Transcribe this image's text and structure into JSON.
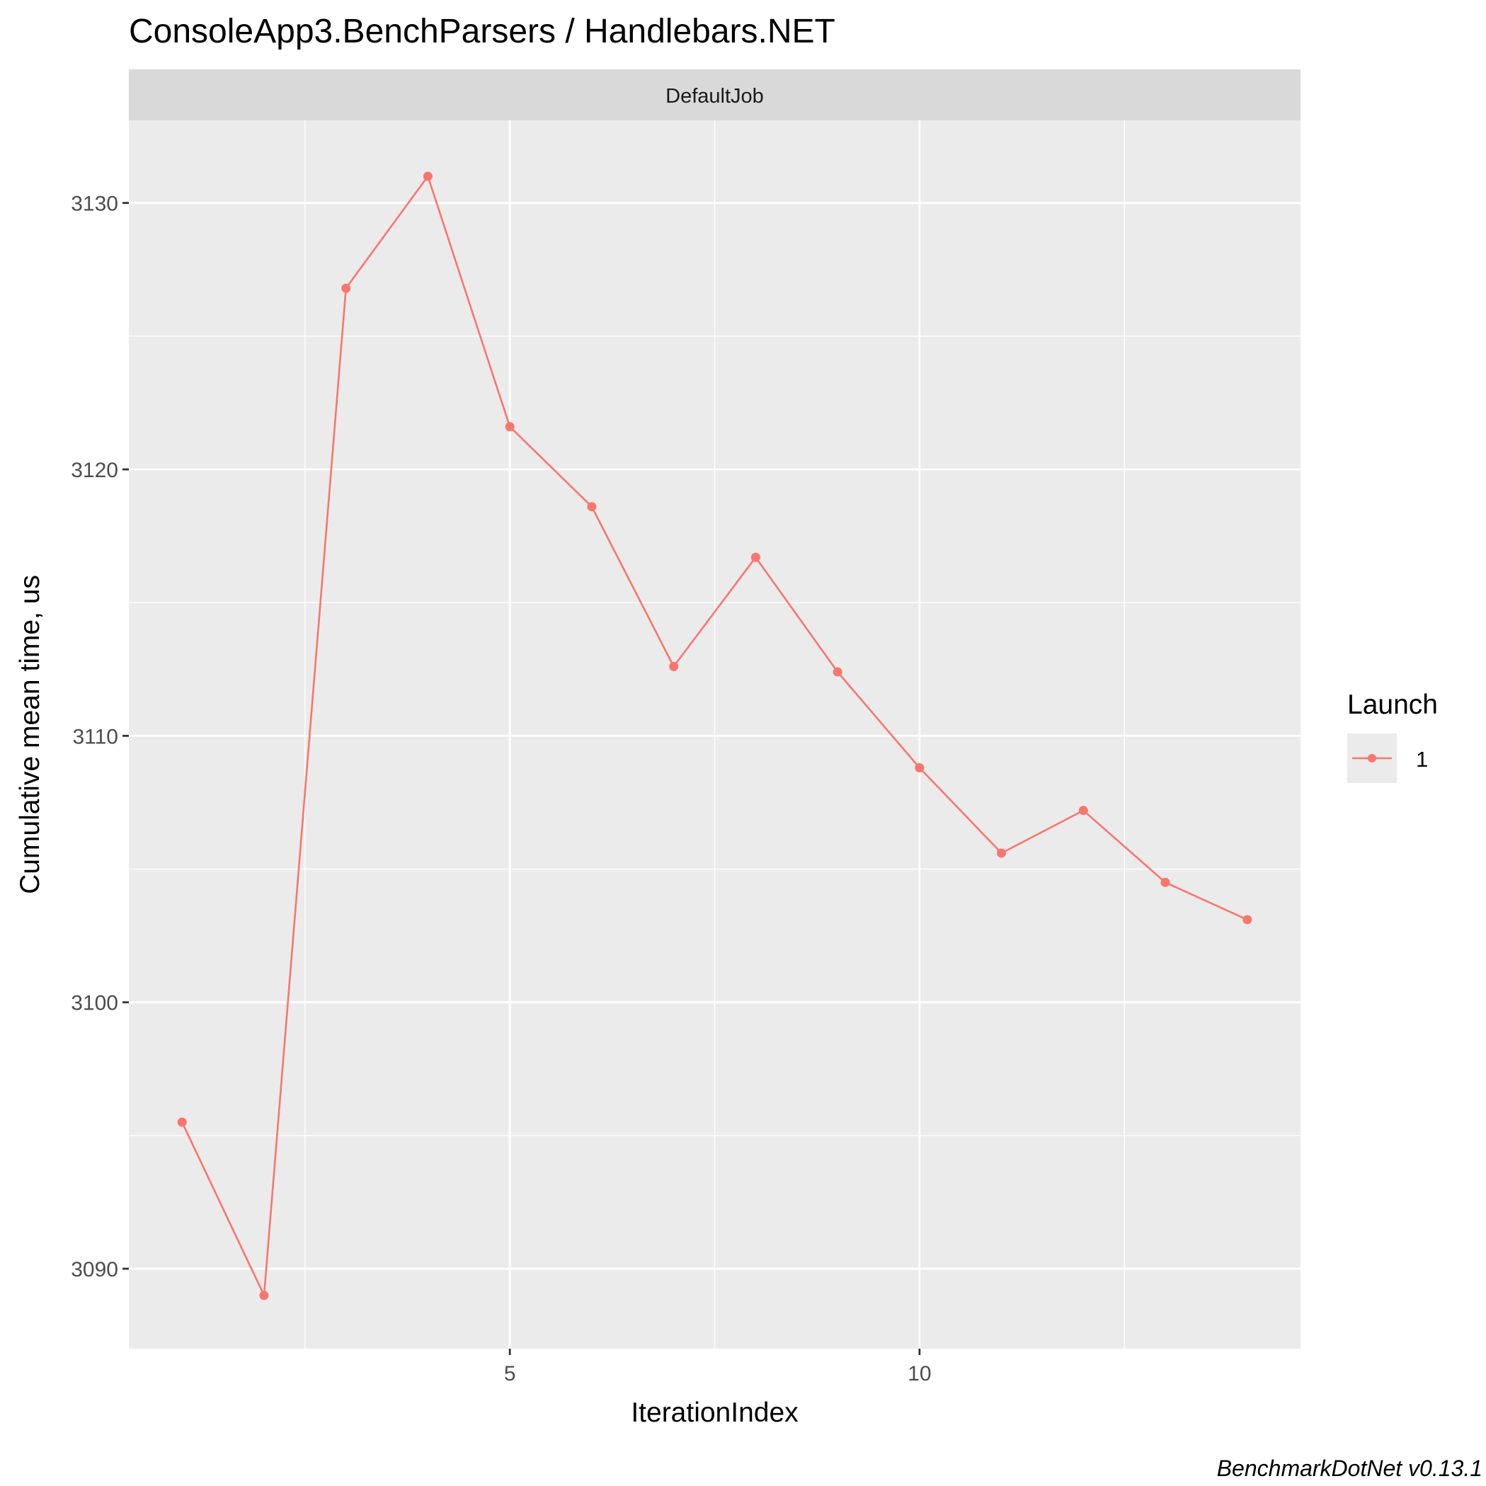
{
  "chart_data": {
    "type": "line",
    "title": "ConsoleApp3.BenchParsers / Handlebars.NET",
    "facet_label": "DefaultJob",
    "xlabel": "IterationIndex",
    "ylabel": "Cumulative mean time, us",
    "x_ticks": [
      5,
      10
    ],
    "y_ticks": [
      3090,
      3100,
      3110,
      3120,
      3130
    ],
    "xlim": [
      0.35,
      14.65
    ],
    "ylim": [
      3087,
      3133.1
    ],
    "grid": true,
    "legend": {
      "title": "Launch",
      "placement": "right"
    },
    "series": [
      {
        "name": "1",
        "color": "#F8766D",
        "x": [
          1,
          2,
          3,
          4,
          5,
          6,
          7,
          8,
          9,
          10,
          11,
          12,
          13,
          14
        ],
        "y": [
          3095.5,
          3089.0,
          3126.8,
          3131.0,
          3121.6,
          3118.6,
          3112.6,
          3116.7,
          3112.4,
          3108.8,
          3105.6,
          3107.2,
          3104.5,
          3103.1
        ]
      }
    ],
    "caption": "BenchmarkDotNet v0.13.1"
  }
}
